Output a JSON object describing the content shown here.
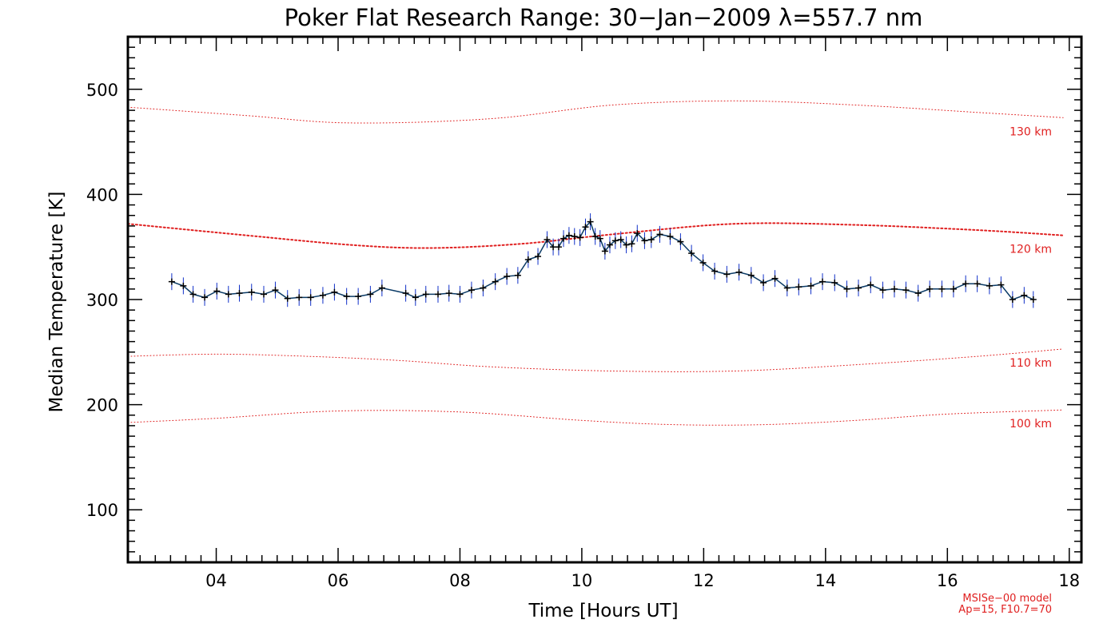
{
  "chart_data": {
    "type": "line",
    "title": "Poker Flat Research Range: 30−Jan−2009 λ=557.7 nm",
    "xlabel": "Time [Hours UT]",
    "ylabel": "Median Temperature [K]",
    "xlim": [
      2.55,
      18.2
    ],
    "ylim": [
      50,
      550
    ],
    "x_ticks": [
      4,
      6,
      8,
      10,
      12,
      14,
      16,
      18
    ],
    "x_tick_labels": [
      "04",
      "06",
      "08",
      "10",
      "12",
      "14",
      "16",
      "18"
    ],
    "y_ticks": [
      100,
      200,
      300,
      400,
      500
    ],
    "y_tick_labels": [
      "100",
      "200",
      "300",
      "400",
      "500"
    ],
    "x_minor_step": 0.25,
    "y_minor_step": 10,
    "grid": false,
    "colors": {
      "series": "#0a3a66",
      "marker": "#000000",
      "error_bar": "#1030c8",
      "model": "#e02020",
      "axes": "#000000"
    },
    "series": [
      {
        "name": "Median Temperature",
        "x": [
          3.27,
          3.46,
          3.62,
          3.81,
          4.01,
          4.2,
          4.38,
          4.58,
          4.78,
          4.97,
          5.17,
          5.36,
          5.55,
          5.75,
          5.94,
          6.14,
          6.33,
          6.53,
          6.72,
          7.11,
          7.27,
          7.44,
          7.64,
          7.82,
          8.0,
          8.19,
          8.38,
          8.58,
          8.77,
          8.95,
          9.12,
          9.28,
          9.43,
          9.53,
          9.62,
          9.7,
          9.79,
          9.88,
          9.97,
          10.06,
          10.14,
          10.22,
          10.3,
          10.38,
          10.46,
          10.55,
          10.64,
          10.73,
          10.82,
          10.91,
          11.03,
          11.14,
          11.28,
          11.45,
          11.62,
          11.8,
          11.99,
          12.18,
          12.38,
          12.58,
          12.78,
          12.98,
          13.17,
          13.37,
          13.56,
          13.76,
          13.95,
          14.15,
          14.35,
          14.54,
          14.74,
          14.94,
          15.13,
          15.32,
          15.52,
          15.71,
          15.91,
          16.1,
          16.3,
          16.49,
          16.69,
          16.88,
          17.07,
          17.26,
          17.41
        ],
        "y": [
          317,
          313,
          305,
          302,
          308,
          305,
          306,
          307,
          305,
          309,
          301,
          302,
          302,
          304,
          307,
          303,
          303,
          305,
          311,
          306,
          302,
          305,
          305,
          306,
          305,
          309,
          311,
          317,
          322,
          323,
          338,
          341,
          357,
          350,
          350,
          358,
          361,
          360,
          359,
          369,
          374,
          360,
          358,
          346,
          352,
          356,
          357,
          352,
          353,
          363,
          356,
          357,
          362,
          360,
          355,
          344,
          335,
          327,
          324,
          326,
          323,
          316,
          320,
          311,
          312,
          313,
          317,
          316,
          310,
          311,
          314,
          309,
          310,
          309,
          306,
          310,
          310,
          310,
          315,
          315,
          313,
          314,
          300,
          304,
          300
        ],
        "y_err": 8
      }
    ],
    "model_curves": [
      {
        "label": "130 km",
        "x": [
          2.55,
          4.5,
          6.2,
          8.5,
          10.5,
          12.5,
          14.5,
          16.5,
          17.9
        ],
        "y": [
          483,
          475,
          468,
          472,
          485,
          489,
          485,
          478,
          473
        ]
      },
      {
        "label": "120 km",
        "x": [
          2.55,
          4.5,
          6.2,
          7.5,
          9.0,
          10.5,
          12.5,
          14.5,
          16.5,
          17.9
        ],
        "y": [
          372,
          361,
          352,
          349,
          353,
          362,
          372,
          371,
          366,
          361
        ]
      },
      {
        "label": "110 km",
        "x": [
          2.55,
          4.0,
          5.5,
          7.0,
          8.5,
          10.5,
          12.5,
          14.5,
          16.5,
          17.9
        ],
        "y": [
          246,
          248,
          246,
          242,
          236,
          232,
          232,
          238,
          246,
          253
        ]
      },
      {
        "label": "100 km",
        "x": [
          2.55,
          4.0,
          6.0,
          8.0,
          10.0,
          11.5,
          13.0,
          14.5,
          16.0,
          17.9
        ],
        "y": [
          183,
          187,
          194,
          193,
          185,
          181,
          181,
          185,
          191,
          195
        ]
      }
    ],
    "annotations": [
      "MSISe−00 model",
      "Ap=15, F10.7=70"
    ]
  }
}
